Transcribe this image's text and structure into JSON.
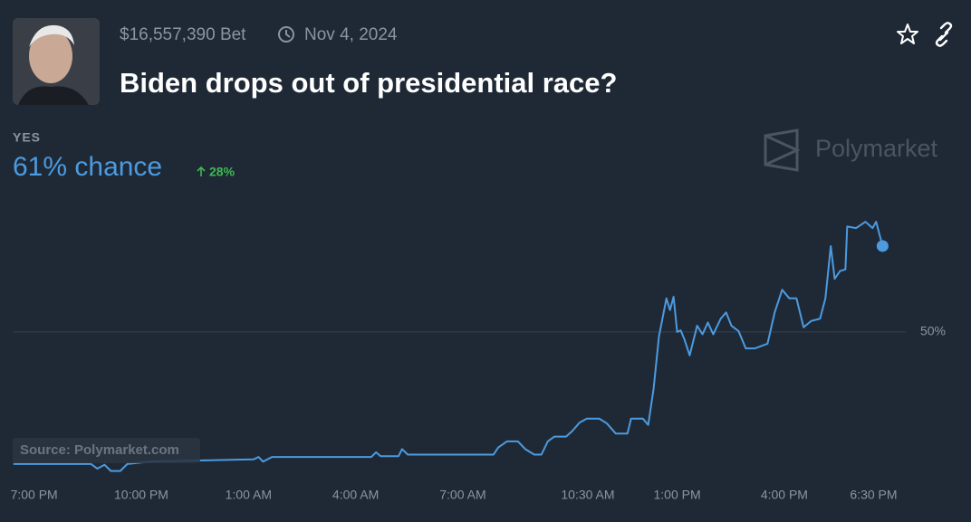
{
  "chart_data": {
    "type": "line",
    "title": "Biden drops out of presidential race?",
    "bet_volume": "$16,557,390 Bet",
    "end_date": "Nov 4, 2024",
    "outcome": "YES",
    "chance_label": "61% chance",
    "change": "28%",
    "brand": "Polymarket",
    "source": "Source: Polymarket.com",
    "color": "#4c9be0",
    "grid": true,
    "x": [
      -0.58,
      1.59,
      1.77,
      1.97,
      2.15,
      2.41,
      2.61,
      3.24,
      6.15,
      6.28,
      6.41,
      6.66,
      9.44,
      9.57,
      9.7,
      10.2,
      10.3,
      10.46,
      12.86,
      12.99,
      13.24,
      13.54,
      13.75,
      14.0,
      14.2,
      14.38,
      14.56,
      14.89,
      15.06,
      15.27,
      15.47,
      15.82,
      16.03,
      16.28,
      16.61,
      16.71,
      17.04,
      17.19,
      17.34,
      17.49,
      17.7,
      17.8,
      17.9,
      18.0,
      18.1,
      18.2,
      18.35,
      18.56,
      18.71,
      18.86,
      19.01,
      19.22,
      19.37,
      19.52,
      19.72,
      19.92,
      20.18,
      20.53,
      20.73,
      20.94,
      21.14,
      21.34,
      21.54,
      21.75,
      22.0,
      22.15,
      22.3,
      22.41,
      22.56,
      22.71,
      22.76,
      23.01,
      23.27,
      23.47,
      23.57,
      23.75
    ],
    "values": [
      33.1,
      33.1,
      32.5,
      33.0,
      32.2,
      32.2,
      33.1,
      33.4,
      33.7,
      34.0,
      33.4,
      34.0,
      34.0,
      34.6,
      34.1,
      34.1,
      35.0,
      34.3,
      34.3,
      35.2,
      36.0,
      36.0,
      35.0,
      34.3,
      34.3,
      36.0,
      36.6,
      36.6,
      37.3,
      38.4,
      38.9,
      38.9,
      38.3,
      37.0,
      37.0,
      38.9,
      38.9,
      38.1,
      42.7,
      49.4,
      54.3,
      52.8,
      54.5,
      50.0,
      50.2,
      49.1,
      47.0,
      50.8,
      49.7,
      51.2,
      49.7,
      51.7,
      52.5,
      50.8,
      50.1,
      47.9,
      47.9,
      48.5,
      52.5,
      55.4,
      54.3,
      54.3,
      50.6,
      51.4,
      51.7,
      54.3,
      61.0,
      56.8,
      57.8,
      58.0,
      63.5,
      63.3,
      64.1,
      63.3,
      64.1,
      61.0
    ],
    "xlim": [
      -0.6,
      24.4
    ],
    "ylim": [
      31,
      68
    ],
    "xticks": [
      {
        "value": 0,
        "label": "7:00 PM"
      },
      {
        "value": 3,
        "label": "10:00 PM"
      },
      {
        "value": 6,
        "label": "1:00 AM"
      },
      {
        "value": 9,
        "label": "4:00 AM"
      },
      {
        "value": 12,
        "label": "7:00 AM"
      },
      {
        "value": 15.5,
        "label": "10:30 AM"
      },
      {
        "value": 18,
        "label": "1:00 PM"
      },
      {
        "value": 21,
        "label": "4:00 PM"
      },
      {
        "value": 23.5,
        "label": "6:30 PM"
      }
    ],
    "yticks": [
      {
        "value": 50,
        "label": "50%"
      }
    ]
  }
}
